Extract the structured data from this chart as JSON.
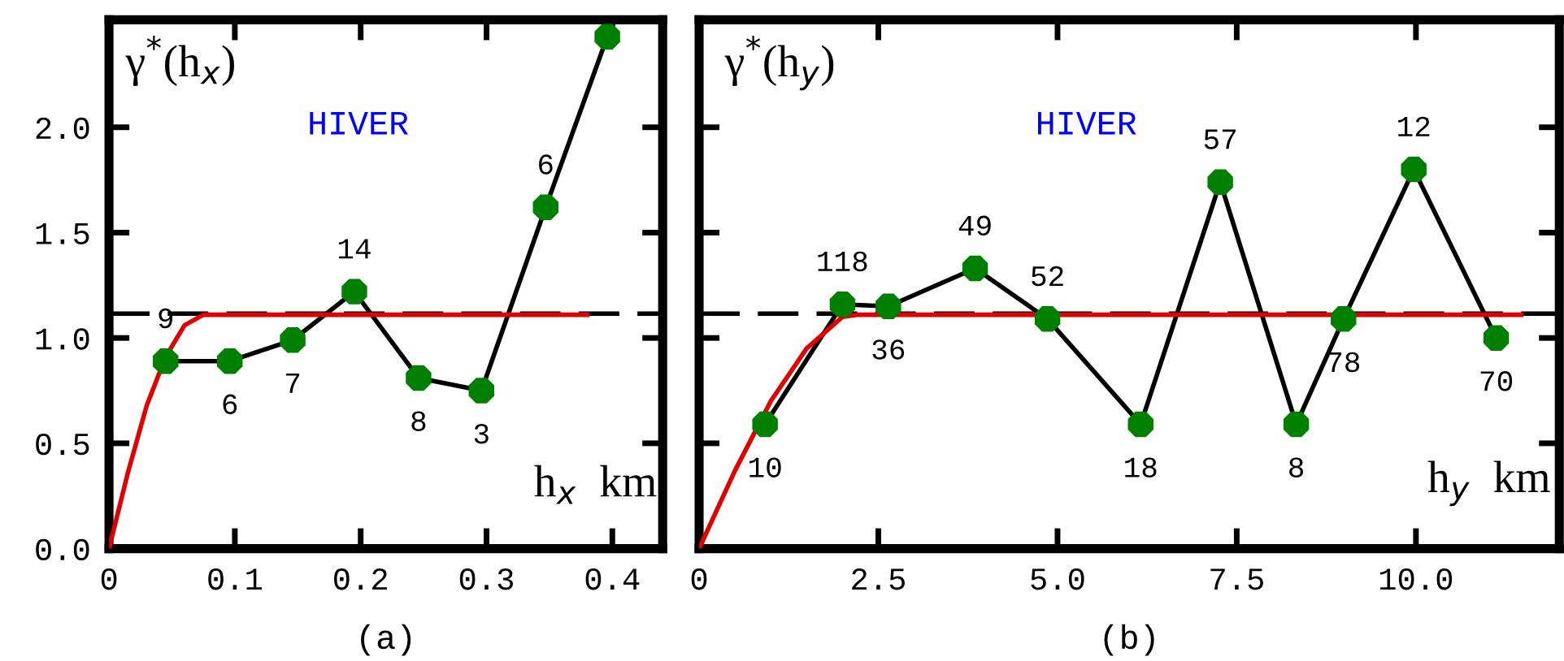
{
  "chart_data": [
    {
      "type": "line",
      "title": "(a)",
      "xlabel": "h$_{x}$  km",
      "ylabel": "γ$^{*}$(h$_{x}$)",
      "annotations": [
        "HIVER",
        {
          "text": "9",
          "x": 0.045,
          "y": 0.89
        },
        {
          "text": "6",
          "x": 0.096,
          "y": 0.89
        },
        {
          "text": "7",
          "x": 0.146,
          "y": 0.99
        },
        {
          "text": "14",
          "x": 0.195,
          "y": 1.22
        },
        {
          "text": "8",
          "x": 0.246,
          "y": 0.81
        },
        {
          "text": "3",
          "x": 0.296,
          "y": 0.75
        },
        {
          "text": "6",
          "x": 0.347,
          "y": 1.62
        }
      ],
      "xlim": [
        0,
        0.44
      ],
      "xticks": [
        {
          "value": 0,
          "label": "0"
        },
        0.1,
        0.2,
        0.3,
        0.4
      ],
      "ylim": [
        0,
        2.51
      ],
      "yticks": [
        {
          "value": 0,
          "label": "0.0"
        },
        0.5,
        {
          "value": 1,
          "label": "1.0"
        },
        1.5,
        {
          "value": 2,
          "label": "2.0"
        }
      ],
      "grid": false,
      "ref_lines": [
        {
          "axis": "y",
          "value": 1.115,
          "color": "#000000",
          "line_style": "dashed"
        }
      ],
      "series": [
        {
          "color": "#000000",
          "marker": "circle",
          "colors": [
            "#008000",
            "#008000",
            "#008000",
            "#008000",
            "#008000",
            "#008000",
            "#008000",
            "#008000"
          ],
          "x": [
            0.045,
            0.096,
            0.146,
            0.195,
            0.246,
            0.296,
            0.347,
            0.396
          ],
          "values": [
            0.89,
            0.89,
            0.99,
            1.22,
            0.81,
            0.75,
            1.62,
            2.43
          ]
        },
        {
          "color": "#e00000",
          "x": [
            0,
            0.015,
            0.03,
            0.045,
            0.06,
            0.075,
            0.38
          ],
          "values": [
            0,
            0.36,
            0.68,
            0.91,
            1.06,
            1.11,
            1.11
          ]
        }
      ]
    },
    {
      "type": "line",
      "title": "(b)",
      "xlabel": "h$_{y}$  km",
      "ylabel": "γ$^{*}$(h$_{y}$)",
      "annotations": [
        "HIVER",
        {
          "text": "10",
          "x": 0.92,
          "y": 0.59
        },
        {
          "text": "118",
          "x": 2.0,
          "y": 1.16
        },
        {
          "text": "36",
          "x": 2.64,
          "y": 1.15
        },
        {
          "text": "49",
          "x": 3.85,
          "y": 1.33
        },
        {
          "text": "52",
          "x": 4.86,
          "y": 1.09
        },
        {
          "text": "18",
          "x": 6.16,
          "y": 0.59
        },
        {
          "text": "57",
          "x": 7.27,
          "y": 1.74
        },
        {
          "text": "8",
          "x": 8.33,
          "y": 0.59
        },
        {
          "text": "78",
          "x": 8.99,
          "y": 1.09
        },
        {
          "text": "12",
          "x": 9.97,
          "y": 1.8
        },
        {
          "text": "70",
          "x": 11.12,
          "y": 1.0
        }
      ],
      "xlim": [
        0,
        12.0
      ],
      "xticks": [
        {
          "value": 0,
          "label": "0"
        },
        2.5,
        {
          "value": 5,
          "label": "5.0"
        },
        7.5,
        {
          "value": 10,
          "label": "10.0"
        }
      ],
      "ylim": [
        0,
        2.51
      ],
      "yticks": [
        0,
        0.5,
        1,
        1.5,
        2
      ],
      "tick_labels": "x",
      "grid": false,
      "ref_lines": [
        {
          "axis": "y",
          "value": 1.115,
          "color": "#000000",
          "line_style": "dashed"
        }
      ],
      "series": [
        {
          "color": "#000000",
          "marker": "circle",
          "colors": [
            "#008000",
            "#008000",
            "#008000",
            "#008000",
            "#008000",
            "#008000",
            "#008000",
            "#008000",
            "#008000",
            "#008000",
            "#008000"
          ],
          "x": [
            0.92,
            2.0,
            2.64,
            3.85,
            4.86,
            6.16,
            7.27,
            8.33,
            8.99,
            9.97,
            11.12
          ],
          "values": [
            0.59,
            1.16,
            1.15,
            1.33,
            1.09,
            0.59,
            1.74,
            0.59,
            1.09,
            1.8,
            1.0
          ]
        },
        {
          "color": "#e00000",
          "x": [
            0,
            0.5,
            1.0,
            1.5,
            2.0,
            2.2,
            11.47
          ],
          "values": [
            0,
            0.37,
            0.7,
            0.95,
            1.1,
            1.11,
            1.11
          ]
        }
      ]
    }
  ]
}
